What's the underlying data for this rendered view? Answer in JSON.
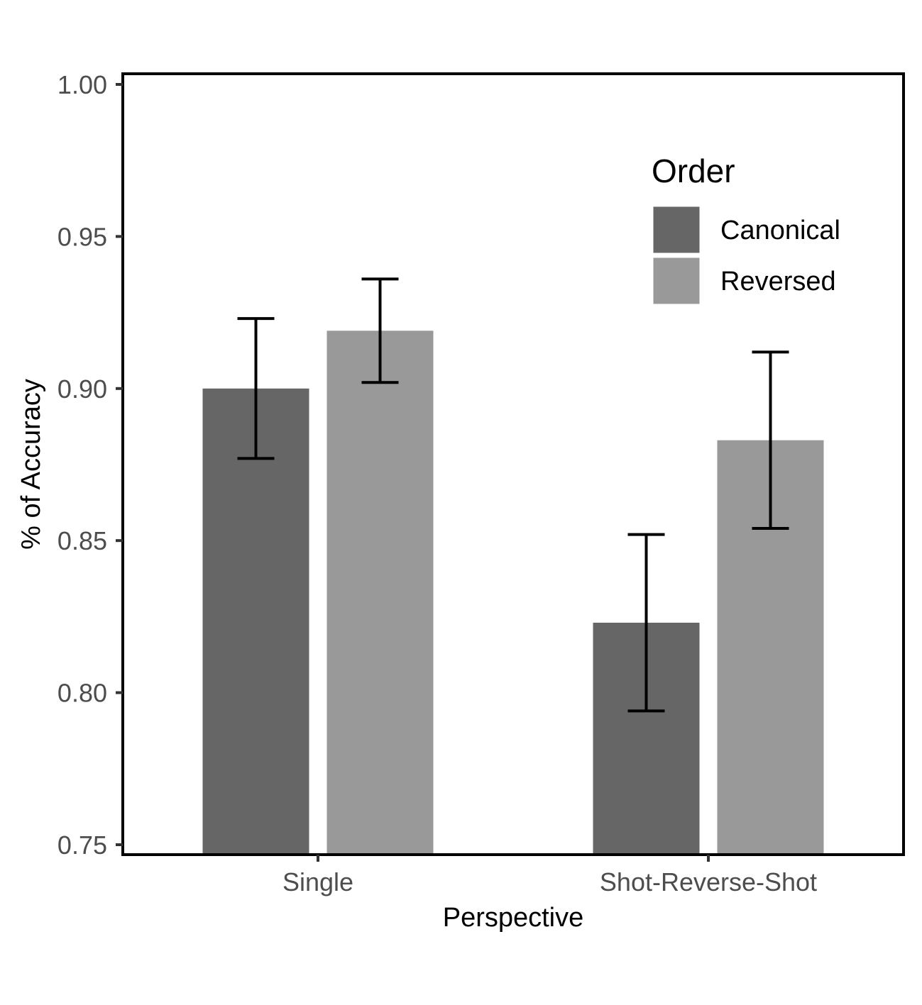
{
  "chart_data": {
    "type": "bar",
    "xlabel": "Perspective",
    "ylabel": "% of Accuracy",
    "categories": [
      "Single",
      "Shot-Reverse-Shot"
    ],
    "ylim": [
      0.75,
      1.0
    ],
    "yticks": [
      "0.75",
      "0.80",
      "0.85",
      "0.90",
      "0.95",
      "1.00"
    ],
    "grid": false,
    "legend": {
      "title": "Order",
      "position": "top-right",
      "entries": [
        "Canonical",
        "Reversed"
      ]
    },
    "series": [
      {
        "name": "Canonical",
        "color": "#666666",
        "values": [
          0.9,
          0.823
        ],
        "error_low": [
          0.877,
          0.794
        ],
        "error_high": [
          0.923,
          0.852
        ]
      },
      {
        "name": "Reversed",
        "color": "#999999",
        "values": [
          0.919,
          0.883
        ],
        "error_low": [
          0.902,
          0.854
        ],
        "error_high": [
          0.936,
          0.912
        ]
      }
    ]
  }
}
